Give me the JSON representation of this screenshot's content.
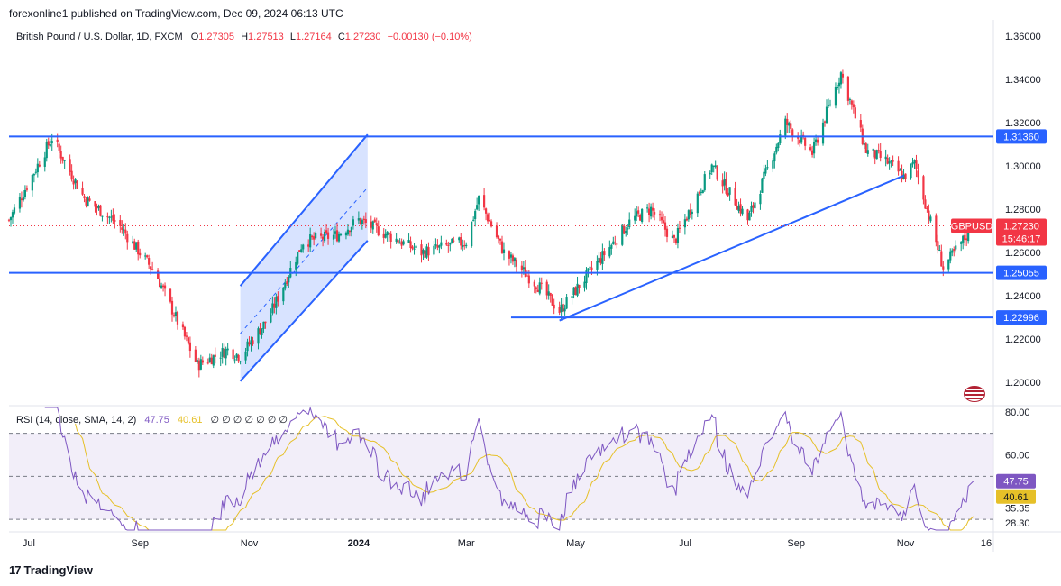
{
  "header": {
    "published": "forexonline1 published on TradingView.com, Dec 09, 2024 06:13 UTC",
    "symbol": "British Pound / U.S. Dollar, 1D, FXCM",
    "o_label": "O",
    "o_value": "1.27305",
    "h_label": "H",
    "h_value": "1.27513",
    "l_label": "L",
    "l_value": "1.27164",
    "c_label": "C",
    "c_value": "1.27230",
    "change": "−0.00130 (−0.10%)"
  },
  "rsi_legend": {
    "label": "RSI (14, close, SMA, 14, 2)",
    "rsi_value": "47.75",
    "sma_value": "40.61",
    "empty_marks": "∅ ∅ ∅ ∅ ∅ ∅ ∅"
  },
  "brand": {
    "logo": "17",
    "name": "TradingView"
  },
  "colors": {
    "up": "#089981",
    "down": "#f23645",
    "line": "#2962ff",
    "rsi": "#7e57c2",
    "rsi_sma": "#e6c028",
    "band": "#ede7f6",
    "badge": "#2962ff",
    "price_badge": "#f23645"
  },
  "chart_data": [
    {
      "type": "candlestick",
      "title": "British Pound / U.S. Dollar, 1D, FXCM",
      "ylim": [
        1.19,
        1.365
      ],
      "y_ticks": [
        "1.20000",
        "1.22000",
        "1.24000",
        "1.26000",
        "1.28000",
        "1.30000",
        "1.32000",
        "1.34000",
        "1.36000"
      ],
      "x_ticks": [
        "Jul",
        "Sep",
        "Nov",
        "2024",
        "Mar",
        "May",
        "Jul",
        "Sep",
        "Nov",
        "16"
      ],
      "anchors": [
        [
          "2023-06-20",
          1.275
        ],
        [
          "2023-07-14",
          1.313
        ],
        [
          "2023-08-01",
          1.285
        ],
        [
          "2023-08-20",
          1.273
        ],
        [
          "2023-09-10",
          1.25
        ],
        [
          "2023-10-03",
          1.208
        ],
        [
          "2023-10-20",
          1.215
        ],
        [
          "2023-10-27",
          1.212
        ],
        [
          "2023-11-12",
          1.23
        ],
        [
          "2023-12-01",
          1.265
        ],
        [
          "2023-12-20",
          1.268
        ],
        [
          "2024-01-01",
          1.275
        ],
        [
          "2024-02-05",
          1.26
        ],
        [
          "2024-03-01",
          1.265
        ],
        [
          "2024-03-08",
          1.285
        ],
        [
          "2024-03-22",
          1.26
        ],
        [
          "2024-04-12",
          1.243
        ],
        [
          "2024-04-22",
          1.233
        ],
        [
          "2024-05-10",
          1.252
        ],
        [
          "2024-06-01",
          1.275
        ],
        [
          "2024-06-12",
          1.28
        ],
        [
          "2024-06-25",
          1.265
        ],
        [
          "2024-07-16",
          1.3
        ],
        [
          "2024-08-05",
          1.275
        ],
        [
          "2024-08-26",
          1.32
        ],
        [
          "2024-09-10",
          1.306
        ],
        [
          "2024-09-26",
          1.343
        ],
        [
          "2024-10-10",
          1.307
        ],
        [
          "2024-10-20",
          1.303
        ],
        [
          "2024-10-31",
          1.295
        ],
        [
          "2024-11-06",
          1.301
        ],
        [
          "2024-11-22",
          1.253
        ],
        [
          "2024-12-09",
          1.2723
        ]
      ],
      "horizontal_levels": [
        {
          "price": 1.3136,
          "label": "1.31360"
        },
        {
          "price": 1.25055,
          "label": "1.25055"
        },
        {
          "price": 1.22996,
          "label": "1.22996"
        }
      ],
      "trend_line": {
        "from": [
          "2024-04-22",
          1.2285
        ],
        "to": [
          "2024-10-31",
          1.2955
        ]
      },
      "channel": {
        "lower": {
          "from": [
            "2023-10-27",
            1.2005
          ],
          "to": [
            "2024-01-06",
            1.2655
          ]
        },
        "upper": {
          "from": [
            "2023-10-27",
            1.2445
          ],
          "to": [
            "2024-01-06",
            1.3145
          ]
        }
      },
      "last_price": {
        "symbol": "GBPUSD",
        "price": "1.27230",
        "countdown": "15:46:17"
      }
    },
    {
      "type": "line",
      "title": "RSI (14, close, SMA, 14, 2)",
      "ylim": [
        25,
        82
      ],
      "y_ticks": [
        "80.00",
        "60.00",
        "35.35",
        "28.30"
      ],
      "bands": [
        70,
        30
      ],
      "series": [
        {
          "name": "RSI",
          "last": 47.75
        },
        {
          "name": "SMA",
          "last": 40.61
        }
      ]
    }
  ]
}
